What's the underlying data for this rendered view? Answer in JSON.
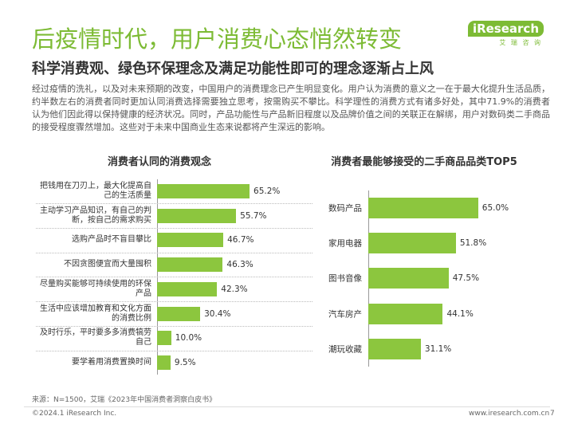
{
  "header": {
    "title": "后疫情时代，用户消费心态悄然转变",
    "subtitle": "科学消费观、绿色环保理念及满足功能性即可的理念逐渐占上风",
    "logo": "iResearch",
    "logo_sub": "艾 瑞 咨 询"
  },
  "body": "经过疫情的洗礼，以及对未来预期的改变，中国用户的消费理念已产生明显变化。用户认为消费的意义之一在于最大化提升生活品质，约半数左右的消费者同时更加认同消费选择需要独立思考，按需购买不攀比。科学理性的消费方式有诸多好处，其中71.9%的消费者认为他们因此得以保持健康的经济状况。同时，产品功能性与产品新旧程度以及品牌价值之间的关联正在解绑，用户对数码类二手商品的接受程度骤然增加。这些对于未来中国商业生态来说都将产生深远的影响。",
  "chart_data": [
    {
      "type": "bar",
      "orientation": "horizontal",
      "title": "消费者认同的消费观念",
      "color": "#8cc63e",
      "categories": [
        "把钱用在刀刃上，最大化提高自己的生活质量",
        "主动学习产品知识，有自己的判断，按自己的需求购买",
        "选购产品时不盲目攀比",
        "不因贪图便宜而大量囤积",
        "尽量购买能够可持续使用的环保产品",
        "生活中应该增加教育和文化方面的消费比例",
        "及时行乐，平时要多多消费犒劳自己",
        "要学着用消费置换时间"
      ],
      "values": [
        65.2,
        55.7,
        46.7,
        46.3,
        42.3,
        30.4,
        10.0,
        9.5
      ],
      "value_labels": [
        "65.2%",
        "55.7%",
        "46.7%",
        "46.3%",
        "42.3%",
        "30.4%",
        "10.0%",
        "9.5%"
      ]
    },
    {
      "type": "bar",
      "orientation": "horizontal",
      "title": "消费者最能够接受的二手商品品类TOP5",
      "color": "#8cc63e",
      "categories": [
        "数码产品",
        "家用电器",
        "图书音像",
        "汽车房产",
        "潮玩收藏"
      ],
      "values": [
        65.0,
        51.8,
        47.5,
        44.1,
        31.1
      ],
      "value_labels": [
        "65.0%",
        "51.8%",
        "47.5%",
        "44.1%",
        "31.1%"
      ]
    }
  ],
  "source": "来源：N=1500，艾瑞《2023年中国消费者洞察白皮书》",
  "footer": {
    "copyright": "©2024.1 iResearch Inc.",
    "url": "www.iresearch.com.cn",
    "page": 7
  }
}
